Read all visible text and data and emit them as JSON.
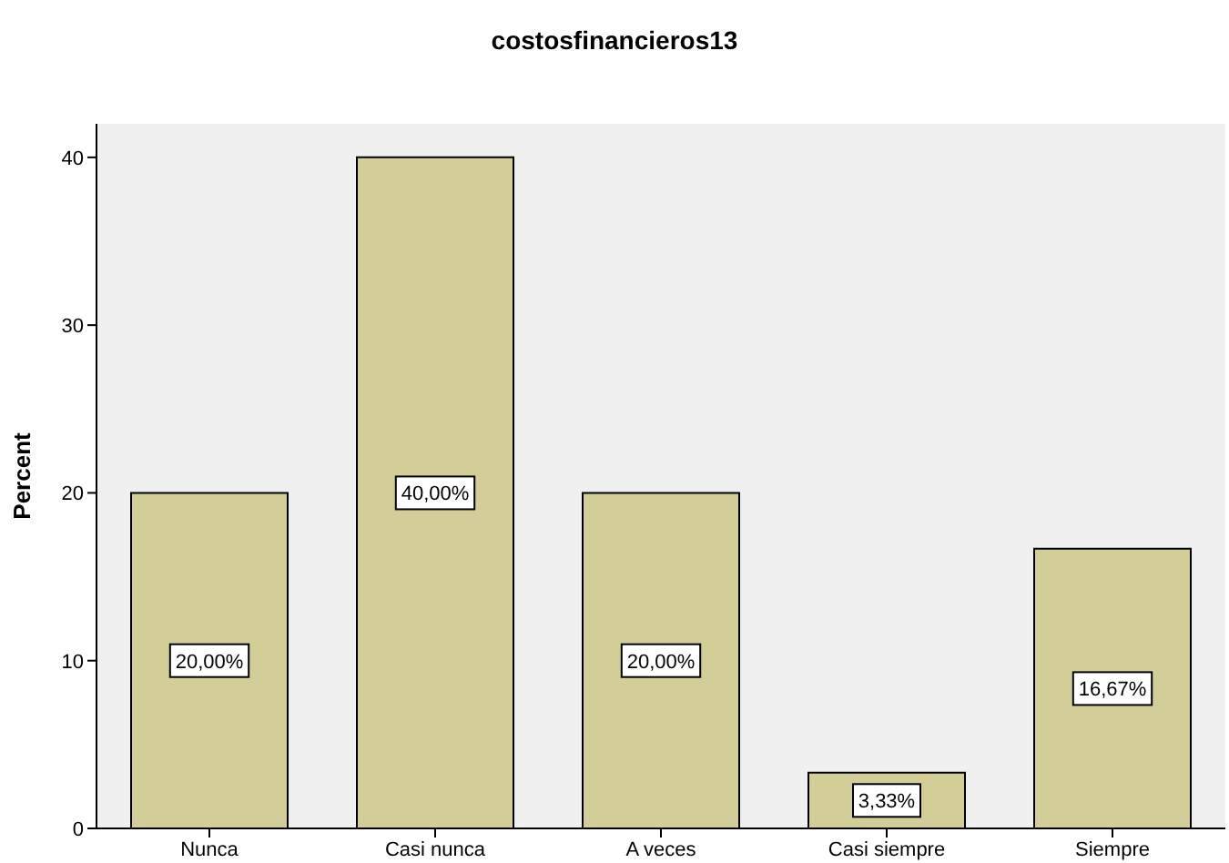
{
  "chart_data": {
    "type": "bar",
    "title": "costosfinancieros13",
    "ylabel": "Percent",
    "categories": [
      "Nunca",
      "Casi nunca",
      "A veces",
      "Casi siempre",
      "Siempre"
    ],
    "values": [
      20,
      40,
      20,
      3.33,
      16.67
    ],
    "value_labels": [
      "20,00%",
      "40,00%",
      "20,00%",
      "3,33%",
      "16,67%"
    ],
    "color": "#d3ce97",
    "ylim": [
      0,
      42
    ],
    "yticks": [
      0,
      10,
      20,
      30,
      40
    ],
    "grid": false,
    "legend": false
  }
}
